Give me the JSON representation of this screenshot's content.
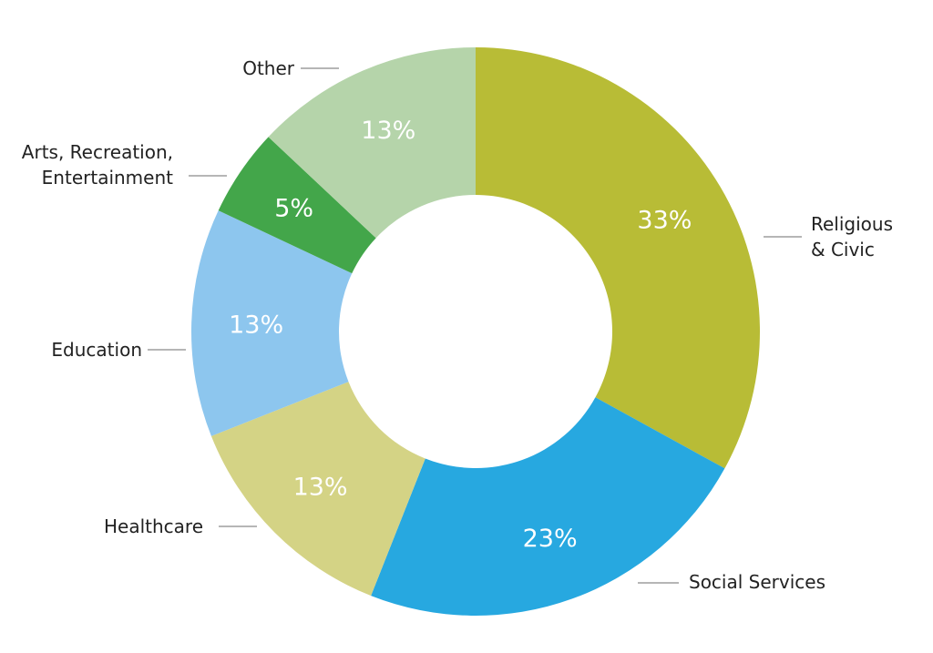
{
  "chart_data": {
    "type": "pie",
    "donut": true,
    "legend": "none",
    "categories": [
      "Religious & Civic",
      "Social Services",
      "Healthcare",
      "Education",
      "Arts, Recreation, Entertainment",
      "Other"
    ],
    "values": [
      33,
      23,
      13,
      13,
      5,
      13
    ],
    "value_labels": [
      "33%",
      "23%",
      "13%",
      "13%",
      "5%",
      "13%"
    ],
    "label_lines": [
      [
        "Religious",
        "& Civic"
      ],
      [
        "Social Services"
      ],
      [
        "Healthcare"
      ],
      [
        "Education"
      ],
      [
        "Arts, Recreation,",
        "Entertainment"
      ],
      [
        "Other"
      ]
    ],
    "colors": [
      "#b8bc36",
      "#27a8e0",
      "#d4d385",
      "#8dc6ee",
      "#43a64a",
      "#b5d4aa"
    ]
  }
}
